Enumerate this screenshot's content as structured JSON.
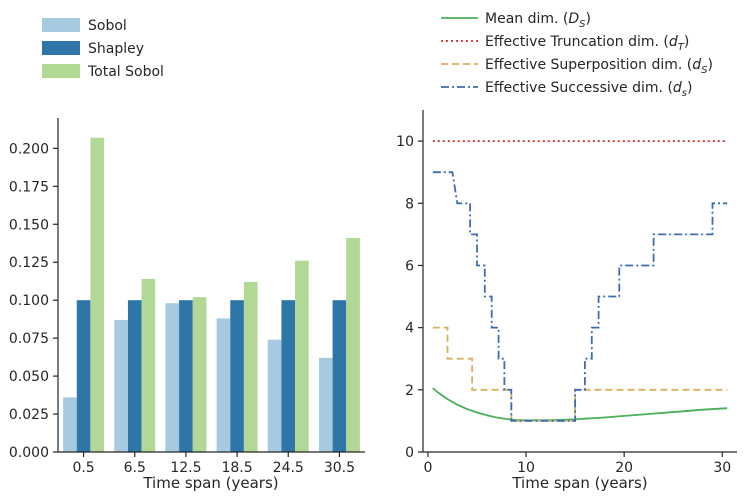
{
  "chart_data": [
    {
      "type": "bar",
      "title": "",
      "xlabel": "Time span (years)",
      "ylabel": "",
      "categories": [
        "0.5",
        "6.5",
        "12.5",
        "18.5",
        "24.5",
        "30.5"
      ],
      "series": [
        {
          "name": "Sobol",
          "color": "#a6cbe0",
          "values": [
            0.036,
            0.087,
            0.098,
            0.088,
            0.074,
            0.062
          ]
        },
        {
          "name": "Shapley",
          "color": "#2e75a8",
          "values": [
            0.1,
            0.1,
            0.1,
            0.1,
            0.1,
            0.1
          ]
        },
        {
          "name": "Total Sobol",
          "color": "#b2d896",
          "values": [
            0.207,
            0.114,
            0.102,
            0.112,
            0.126,
            0.141
          ]
        }
      ],
      "ylim": [
        0,
        0.22
      ],
      "yticks": [
        "0.000",
        "0.025",
        "0.050",
        "0.075",
        "0.100",
        "0.125",
        "0.150",
        "0.175",
        "0.200"
      ],
      "legend": "top-left, outside"
    },
    {
      "type": "line",
      "title": "",
      "xlabel": "Time span (years)",
      "ylabel": "",
      "xlim": [
        -0.5,
        31.5
      ],
      "ylim": [
        0,
        11
      ],
      "xticks": [
        "0",
        "10",
        "20",
        "30"
      ],
      "yticks": [
        "0",
        "2",
        "4",
        "6",
        "8",
        "10"
      ],
      "legend": "top, outside",
      "series": [
        {
          "name": "Mean dim. (D_S)",
          "label_main": "Mean dim. (",
          "label_var": "D",
          "label_sub": "S",
          "label_end": ")",
          "color": "#4caf5a",
          "dash": "",
          "x": [
            0.5,
            1,
            2,
            3,
            4,
            5,
            6,
            7,
            8,
            9,
            10,
            11,
            12,
            13,
            14,
            15,
            16,
            18,
            20,
            22,
            24,
            26,
            28,
            30.5
          ],
          "y": [
            2.06,
            1.92,
            1.7,
            1.52,
            1.38,
            1.27,
            1.18,
            1.11,
            1.06,
            1.03,
            1.02,
            1.02,
            1.02,
            1.03,
            1.04,
            1.05,
            1.07,
            1.11,
            1.16,
            1.21,
            1.26,
            1.31,
            1.36,
            1.41
          ]
        },
        {
          "name": "Effective Truncation dim. (d_T)",
          "label_main": "Effective Truncation dim. (",
          "label_var": "d",
          "label_sub": "T",
          "label_end": ")",
          "color": "#d62728",
          "dash": "2,3",
          "x": [
            0.5,
            30.5
          ],
          "y": [
            10,
            10
          ]
        },
        {
          "name": "Effective Superposition dim. (d_S)",
          "label_main": "Effective Superposition dim. (",
          "label_var": "d",
          "label_sub": "S",
          "label_end": ")",
          "color": "#dbb05a",
          "dash": "7,4",
          "x": [
            0.5,
            2,
            2,
            4.5,
            4.5,
            8.5,
            8.5,
            15,
            15,
            30.5
          ],
          "y": [
            4,
            4,
            3,
            3,
            2,
            2,
            1,
            1,
            2,
            2
          ]
        },
        {
          "name": "Effective Successive dim. (d_s)",
          "label_main": "Effective Successive dim. (",
          "label_var": "d",
          "label_sub": "s",
          "label_end": ")",
          "color": "#3d6cb0",
          "dash": "8,3,2,3",
          "x": [
            0.5,
            2.5,
            3,
            4.3,
            4.3,
            5,
            5,
            5.8,
            5.8,
            6.5,
            6.5,
            7.2,
            7.2,
            7.8,
            7.8,
            8.5,
            8.5,
            15,
            15,
            16,
            16,
            16.7,
            16.7,
            17.4,
            17.4,
            18.1,
            18.1,
            19.5,
            19.5,
            20.5,
            20.5,
            23,
            23,
            24.5,
            24.5,
            28,
            28,
            29,
            29,
            30.5
          ],
          "y": [
            9,
            9,
            8,
            8,
            7,
            7,
            6,
            6,
            5,
            5,
            4,
            4,
            3,
            3,
            2,
            2,
            1,
            1,
            2,
            2,
            3,
            3,
            4,
            4,
            5,
            5,
            5,
            5,
            6,
            6,
            6,
            6,
            7,
            7,
            7,
            7,
            7,
            7,
            8,
            8
          ]
        }
      ]
    }
  ]
}
